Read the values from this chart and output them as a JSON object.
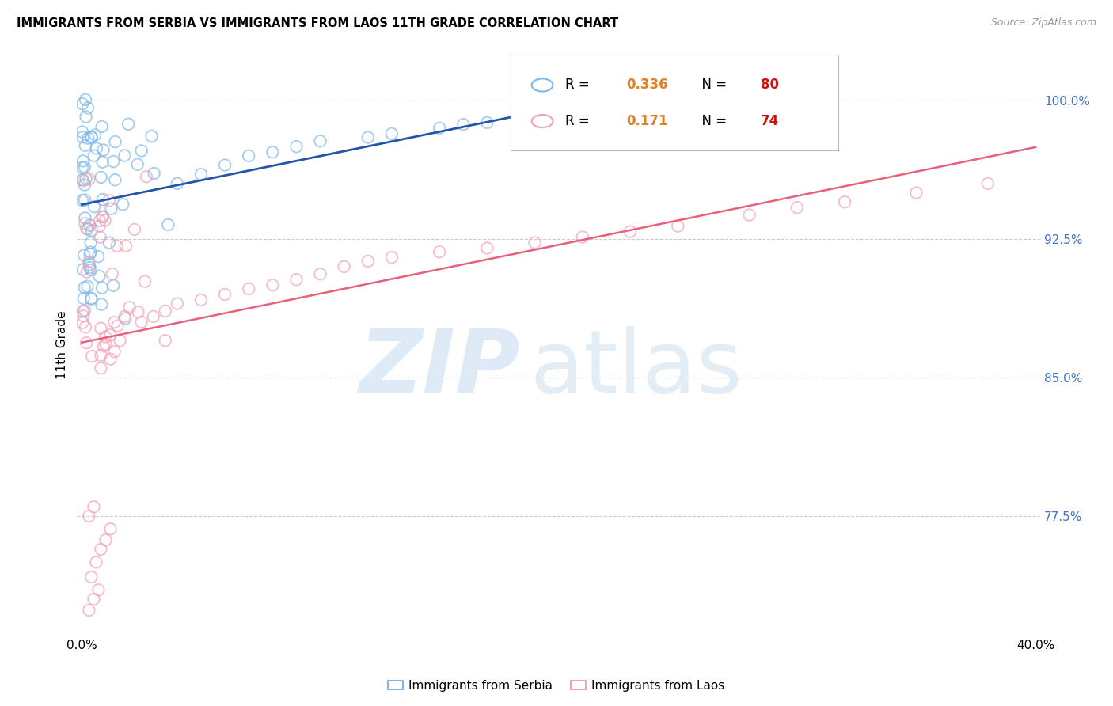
{
  "title": "IMMIGRANTS FROM SERBIA VS IMMIGRANTS FROM LAOS 11TH GRADE CORRELATION CHART",
  "source": "Source: ZipAtlas.com",
  "ylabel": "11th Grade",
  "serbia_color": "#7db8e8",
  "laos_color": "#f4a0b5",
  "serbia_line_color": "#2255aa",
  "laos_line_color": "#e8607a",
  "serbia_r": "0.336",
  "serbia_n": "80",
  "laos_r": "0.171",
  "laos_n": "74",
  "r_color": "#e08020",
  "n_color": "#cc1111",
  "ytick_positions": [
    0.775,
    0.85,
    0.925,
    1.0
  ],
  "ytick_labels": [
    "77.5%",
    "85.0%",
    "92.5%",
    "100.0%"
  ],
  "xlim": [
    0.0,
    0.4
  ],
  "ylim": [
    0.71,
    1.025
  ],
  "watermark_zip": "ZIP",
  "watermark_atlas": "atlas"
}
